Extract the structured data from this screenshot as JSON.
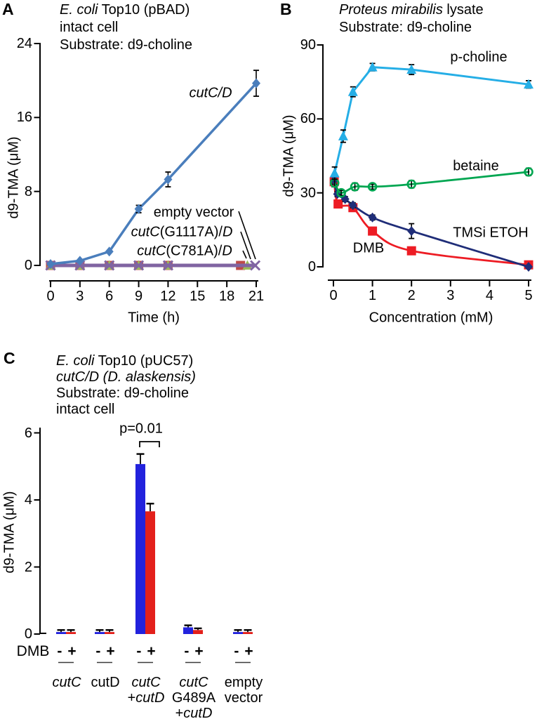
{
  "panel_labels": [
    "A",
    "B",
    "C"
  ],
  "chart_data": [
    {
      "type": "line",
      "panel": "A",
      "title_lines": [
        [
          {
            "text": "E. coli",
            "italic": true
          },
          {
            "text": " Top10 (pBAD)",
            "italic": false
          }
        ],
        [
          {
            "text": "intact cell",
            "italic": false
          }
        ],
        [
          {
            "text": "Substrate: d9-choline",
            "italic": false
          }
        ]
      ],
      "xlabel": "Time (h)",
      "ylabel": "d9-TMA (μM)",
      "xlim": [
        0,
        21
      ],
      "ylim": [
        0,
        24
      ],
      "x_ticks": [
        0,
        3,
        6,
        9,
        12,
        15,
        18,
        21
      ],
      "y_ticks": [
        0,
        8,
        16,
        24
      ],
      "grid": false,
      "series": [
        {
          "name": "cutC(C781A)/D",
          "color": "#be4b48",
          "marker": "square",
          "line_width": 3,
          "x": [
            0,
            3,
            6,
            9,
            12,
            19.4
          ],
          "y": [
            0,
            0,
            0,
            0,
            0,
            0
          ],
          "yerr": [
            0,
            0,
            0,
            0,
            0,
            0
          ],
          "smooth": false
        },
        {
          "name": "cutC(G1117A)/D",
          "color": "#9bbb59",
          "marker": "triangle",
          "line_width": 3,
          "x": [
            0,
            3,
            6,
            9,
            12,
            20.1
          ],
          "y": [
            0,
            0,
            0,
            0,
            0,
            0
          ],
          "yerr": [
            0,
            0,
            0,
            0,
            0,
            0
          ],
          "smooth": false
        },
        {
          "name": "empty vector",
          "color": "#8064a2",
          "marker": "x",
          "line_width": 5,
          "x": [
            0,
            3,
            6,
            9,
            12,
            20.9
          ],
          "y": [
            0,
            0,
            0,
            0,
            0,
            0
          ],
          "yerr": [
            0,
            0,
            0,
            0,
            0,
            0
          ],
          "smooth": false
        },
        {
          "name": "cutC/D",
          "color": "#4a7ebc",
          "marker": "diamond",
          "line_width": 3.5,
          "x": [
            0,
            3,
            6,
            9,
            12,
            21
          ],
          "y": [
            0.15,
            0.5,
            1.5,
            6.1,
            9.3,
            19.7
          ],
          "yerr": [
            0,
            0,
            0,
            0.4,
            0.8,
            1.4
          ],
          "smooth": false
        }
      ],
      "series_labels": {
        "cutcd": [
          {
            "text": "cutC/D",
            "italic": true
          }
        ],
        "empty_vector": [
          {
            "text": "empty vector",
            "italic": false
          }
        ],
        "g1117a": [
          {
            "text": "cutC",
            "italic": true
          },
          {
            "text": "(G1117A)/",
            "italic": false
          },
          {
            "text": "D",
            "italic": true
          }
        ],
        "c781a": [
          {
            "text": "cutC",
            "italic": true
          },
          {
            "text": "(C781A)/",
            "italic": false
          },
          {
            "text": "D",
            "italic": true
          }
        ]
      }
    },
    {
      "type": "line",
      "panel": "B",
      "title_lines": [
        [
          {
            "text": "Proteus mirabilis",
            "italic": true
          },
          {
            "text": " lysate",
            "italic": false
          }
        ],
        [
          {
            "text": "Substrate: d9-choline",
            "italic": false
          }
        ]
      ],
      "xlabel": "Concentration (mM)",
      "ylabel": "d9-TMA (μM)",
      "xlim": [
        0,
        5
      ],
      "ylim": [
        0,
        90
      ],
      "x_ticks": [
        0,
        1,
        2,
        3,
        4,
        5
      ],
      "y_ticks": [
        0,
        30,
        60,
        90
      ],
      "grid": false,
      "series": [
        {
          "name": "DMB",
          "color": "#ed1c24",
          "marker": "square",
          "line_width": 2.8,
          "smooth": true,
          "x": [
            0.02,
            0.12,
            0.5,
            1,
            2,
            5
          ],
          "y": [
            34.5,
            25.5,
            24,
            14.5,
            6.5,
            0.8
          ],
          "yerr": [
            2,
            1.5,
            1,
            1.5,
            1,
            0.5
          ]
        },
        {
          "name": "TMSi ETOH",
          "color": "#1f2d78",
          "marker": "diamond",
          "line_width": 2.8,
          "smooth": true,
          "x": [
            0.02,
            0.1,
            0.3,
            0.5,
            1,
            2,
            5
          ],
          "y": [
            35,
            29.5,
            27.5,
            25,
            20,
            14.5,
            0
          ],
          "yerr": [
            1.5,
            1,
            1,
            1,
            1,
            3,
            0.5
          ]
        },
        {
          "name": "betaine",
          "color": "#00a651",
          "marker": "circle-open",
          "line_width": 2.8,
          "smooth": true,
          "x": [
            0.03,
            0.2,
            0.55,
            1,
            2,
            5
          ],
          "y": [
            34,
            30,
            32.5,
            32.5,
            33.5,
            38.5
          ],
          "yerr": [
            1.5,
            1,
            1.5,
            1,
            1.5,
            1.5
          ]
        },
        {
          "name": "p-choline",
          "color": "#25aee6",
          "marker": "triangle",
          "line_width": 3,
          "smooth": false,
          "x": [
            0.03,
            0.25,
            0.5,
            1,
            2,
            5
          ],
          "y": [
            38,
            53,
            71,
            81,
            80,
            74
          ],
          "yerr": [
            2.5,
            2.5,
            2,
            1.5,
            2,
            1.5
          ]
        }
      ]
    },
    {
      "type": "bar",
      "panel": "C",
      "title_lines": [
        [
          {
            "text": "E. coli",
            "italic": true
          },
          {
            "text": " Top10 (pUC57)",
            "italic": false
          }
        ],
        [
          {
            "text": "cutC/D (D. alaskensis)",
            "italic": true
          }
        ],
        [
          {
            "text": "Substrate: d9-choline",
            "italic": false
          }
        ],
        [
          {
            "text": "intact cell",
            "italic": false
          }
        ]
      ],
      "ylabel": "d9-TMA (μM)",
      "ylim": [
        0,
        6
      ],
      "y_ticks": [
        0,
        2,
        4,
        6
      ],
      "grid": false,
      "bar_colors": {
        "minus": "#2222dd",
        "plus": "#e3201b"
      },
      "dmb_row": {
        "label": "DMB",
        "minus": "-",
        "plus": "+"
      },
      "significance": {
        "text": "p=0.01",
        "group": "cutC+cutD"
      },
      "groups": [
        {
          "name": "cutC",
          "lines": [
            [
              {
                "text": "cutC",
                "italic": true
              }
            ]
          ],
          "minus": {
            "value": 0.06,
            "err": 0.06
          },
          "plus": {
            "value": 0.06,
            "err": 0.06
          }
        },
        {
          "name": "cutD",
          "lines": [
            [
              {
                "text": "cutD",
                "italic": false
              }
            ]
          ],
          "minus": {
            "value": 0.06,
            "err": 0.06
          },
          "plus": {
            "value": 0.06,
            "err": 0.06
          }
        },
        {
          "name": "cutC+cutD",
          "lines": [
            [
              {
                "text": "cutC",
                "italic": true
              }
            ],
            [
              {
                "text": "+",
                "italic": false
              },
              {
                "text": "cutD",
                "italic": true
              }
            ]
          ],
          "minus": {
            "value": 5.07,
            "err": 0.3
          },
          "plus": {
            "value": 3.66,
            "err": 0.23
          }
        },
        {
          "name": "cutC G489A +cutD",
          "lines": [
            [
              {
                "text": "cutC",
                "italic": true
              }
            ],
            [
              {
                "text": "G489A",
                "italic": false
              }
            ],
            [
              {
                "text": "+",
                "italic": false
              },
              {
                "text": "cutD",
                "italic": true
              }
            ]
          ],
          "minus": {
            "value": 0.2,
            "err": 0.06
          },
          "plus": {
            "value": 0.12,
            "err": 0.05
          }
        },
        {
          "name": "empty vector",
          "lines": [
            [
              {
                "text": "empty",
                "italic": false
              }
            ],
            [
              {
                "text": "vector",
                "italic": false
              }
            ]
          ],
          "minus": {
            "value": 0.06,
            "err": 0.06
          },
          "plus": {
            "value": 0.06,
            "err": 0.06
          }
        }
      ]
    }
  ]
}
